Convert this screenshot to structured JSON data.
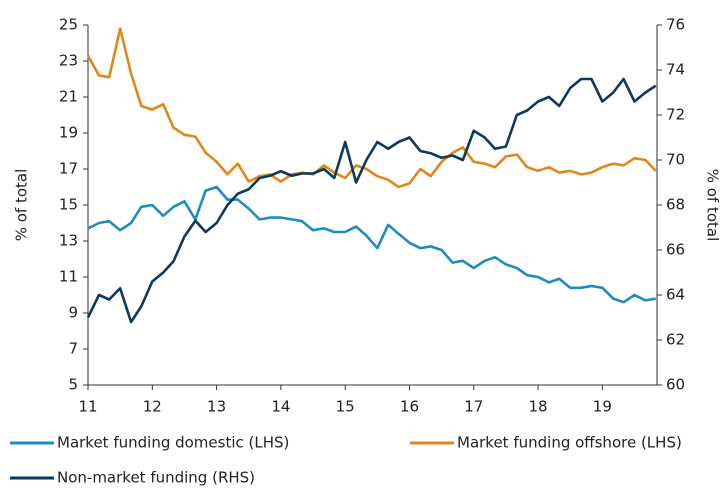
{
  "chart_data": {
    "type": "line",
    "y_label": "% of total",
    "y2_label": "% of total",
    "x": [
      11.0,
      11.17,
      11.33,
      11.5,
      11.67,
      11.83,
      12.0,
      12.17,
      12.33,
      12.5,
      12.67,
      12.83,
      13.0,
      13.17,
      13.33,
      13.5,
      13.67,
      13.83,
      14.0,
      14.17,
      14.33,
      14.5,
      14.67,
      14.83,
      15.0,
      15.17,
      15.33,
      15.5,
      15.67,
      15.83,
      16.0,
      16.17,
      16.33,
      16.5,
      16.67,
      16.83,
      17.0,
      17.17,
      17.33,
      17.5,
      17.67,
      17.83,
      18.0,
      18.17,
      18.33,
      18.5,
      18.67,
      18.83,
      19.0,
      19.17,
      19.33,
      19.5,
      19.67,
      19.83
    ],
    "xlim": [
      11,
      19.85
    ],
    "xticks": [
      11,
      12,
      13,
      14,
      15,
      16,
      17,
      18,
      19
    ],
    "ylim": [
      5,
      25
    ],
    "yticks": [
      5,
      7,
      9,
      11,
      13,
      15,
      17,
      19,
      21,
      23,
      25
    ],
    "y2lim": [
      60,
      76
    ],
    "y2ticks": [
      60,
      62,
      64,
      66,
      68,
      70,
      72,
      74,
      76
    ],
    "series": [
      {
        "name": "Market funding domestic (LHS)",
        "color": "#1e8bc3",
        "axis": "y",
        "values": [
          13.7,
          14.0,
          14.1,
          13.6,
          14.0,
          14.9,
          15.0,
          14.4,
          14.9,
          15.2,
          14.2,
          15.8,
          16.0,
          15.3,
          15.3,
          14.8,
          14.2,
          14.3,
          14.3,
          14.2,
          14.1,
          13.6,
          13.7,
          13.5,
          13.5,
          13.8,
          13.3,
          12.6,
          13.9,
          13.4,
          12.9,
          12.6,
          12.7,
          12.5,
          11.8,
          11.9,
          11.5,
          11.9,
          12.1,
          11.7,
          11.5,
          11.1,
          11.0,
          10.7,
          10.9,
          10.4,
          10.4,
          10.5,
          10.4,
          9.8,
          9.6,
          10.0,
          9.7,
          9.8
        ]
      },
      {
        "name": "Market funding offshore (LHS)",
        "color": "#e0861a",
        "axis": "y",
        "values": [
          23.3,
          22.2,
          22.1,
          24.8,
          22.3,
          20.5,
          20.3,
          20.6,
          19.3,
          18.9,
          18.8,
          17.9,
          17.4,
          16.7,
          17.3,
          16.3,
          16.6,
          16.7,
          16.3,
          16.7,
          16.8,
          16.7,
          17.2,
          16.8,
          16.5,
          17.2,
          17.0,
          16.6,
          16.4,
          16.0,
          16.2,
          17.0,
          16.6,
          17.4,
          17.9,
          18.2,
          17.4,
          17.3,
          17.1,
          17.7,
          17.8,
          17.1,
          16.9,
          17.1,
          16.8,
          16.9,
          16.7,
          16.8,
          17.1,
          17.3,
          17.2,
          17.6,
          17.5,
          16.9
        ]
      },
      {
        "name": "Non-market funding (RHS)",
        "color": "#0d3a5c",
        "axis": "y2",
        "values": [
          63.0,
          64.0,
          63.8,
          64.3,
          62.8,
          63.5,
          64.6,
          65.0,
          65.5,
          66.6,
          67.3,
          66.8,
          67.2,
          68.0,
          68.5,
          68.7,
          69.2,
          69.3,
          69.5,
          69.3,
          69.4,
          69.4,
          69.6,
          69.2,
          70.8,
          69.0,
          70.0,
          70.8,
          70.5,
          70.8,
          71.0,
          70.4,
          70.3,
          70.1,
          70.2,
          70.0,
          71.3,
          71.0,
          70.5,
          70.6,
          72.0,
          72.2,
          72.6,
          72.8,
          72.4,
          73.2,
          73.6,
          73.6,
          72.6,
          73.0,
          73.6,
          72.6,
          73.0,
          73.3
        ]
      }
    ]
  }
}
